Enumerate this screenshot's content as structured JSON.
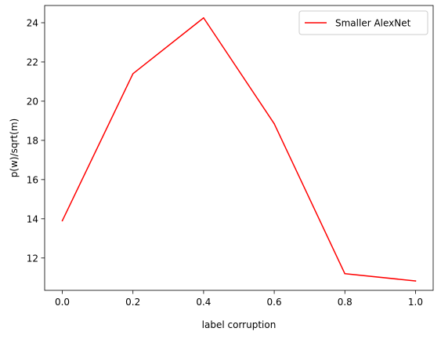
{
  "chart_data": {
    "type": "line",
    "title": "",
    "xlabel": "label corruption",
    "ylabel": "p(w)/sqrt(m)",
    "xlim": [
      -0.05,
      1.05
    ],
    "ylim": [
      10.35,
      24.88
    ],
    "xticks": [
      0.0,
      0.2,
      0.4,
      0.6,
      0.8,
      1.0
    ],
    "xtick_labels": [
      "0.0",
      "0.2",
      "0.4",
      "0.6",
      "0.8",
      "1.0"
    ],
    "yticks": [
      12,
      14,
      16,
      18,
      20,
      22,
      24
    ],
    "ytick_labels": [
      "12",
      "14",
      "16",
      "18",
      "20",
      "22",
      "24"
    ],
    "grid": false,
    "legend_position": "top-right",
    "series": [
      {
        "name": "Smaller AlexNet",
        "color": "#ff0000",
        "x": [
          0.0,
          0.2,
          0.4,
          0.6,
          0.8,
          1.0
        ],
        "y": [
          13.9,
          21.4,
          24.25,
          18.85,
          11.2,
          10.83
        ]
      }
    ]
  }
}
